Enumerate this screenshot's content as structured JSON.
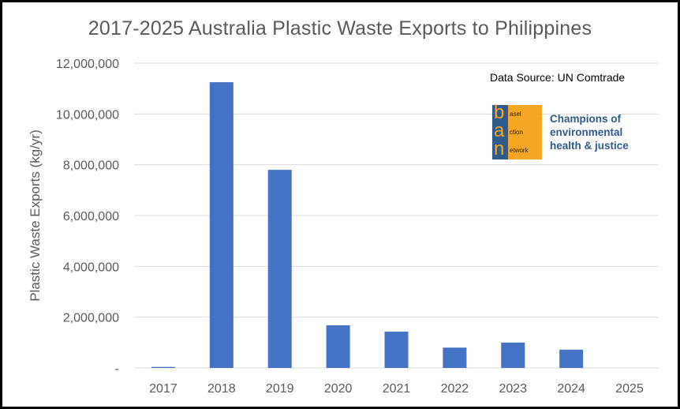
{
  "chart_data": {
    "type": "bar",
    "title": "2017-2025 Australia Plastic Waste Exports to Philippines",
    "xlabel": "",
    "ylabel": "Plastic Waste Exports (kg/yr)",
    "categories": [
      "2017",
      "2018",
      "2019",
      "2020",
      "2021",
      "2022",
      "2023",
      "2024",
      "2025"
    ],
    "values": [
      40000,
      11250000,
      7800000,
      1680000,
      1430000,
      800000,
      1000000,
      720000,
      0
    ],
    "ylim": [
      0,
      12000000
    ],
    "yticks": [
      0,
      2000000,
      4000000,
      6000000,
      8000000,
      10000000,
      12000000
    ],
    "ytick_labels": [
      "-",
      "2,000,000",
      "4,000,000",
      "6,000,000",
      "8,000,000",
      "10,000,000",
      "12,000,000"
    ],
    "grid": true,
    "bar_color": "#4472c4",
    "grid_color": "#d9d9d9"
  },
  "annotations": {
    "source": "Data Source: UN Comtrade"
  },
  "logo": {
    "letters": [
      "b",
      "a",
      "n"
    ],
    "words": [
      "asel",
      "ction",
      "etwork"
    ],
    "tagline": [
      "Champions of",
      "environmental",
      "health & justice"
    ],
    "blue": "#2e5b8c",
    "orange": "#f5a623"
  }
}
